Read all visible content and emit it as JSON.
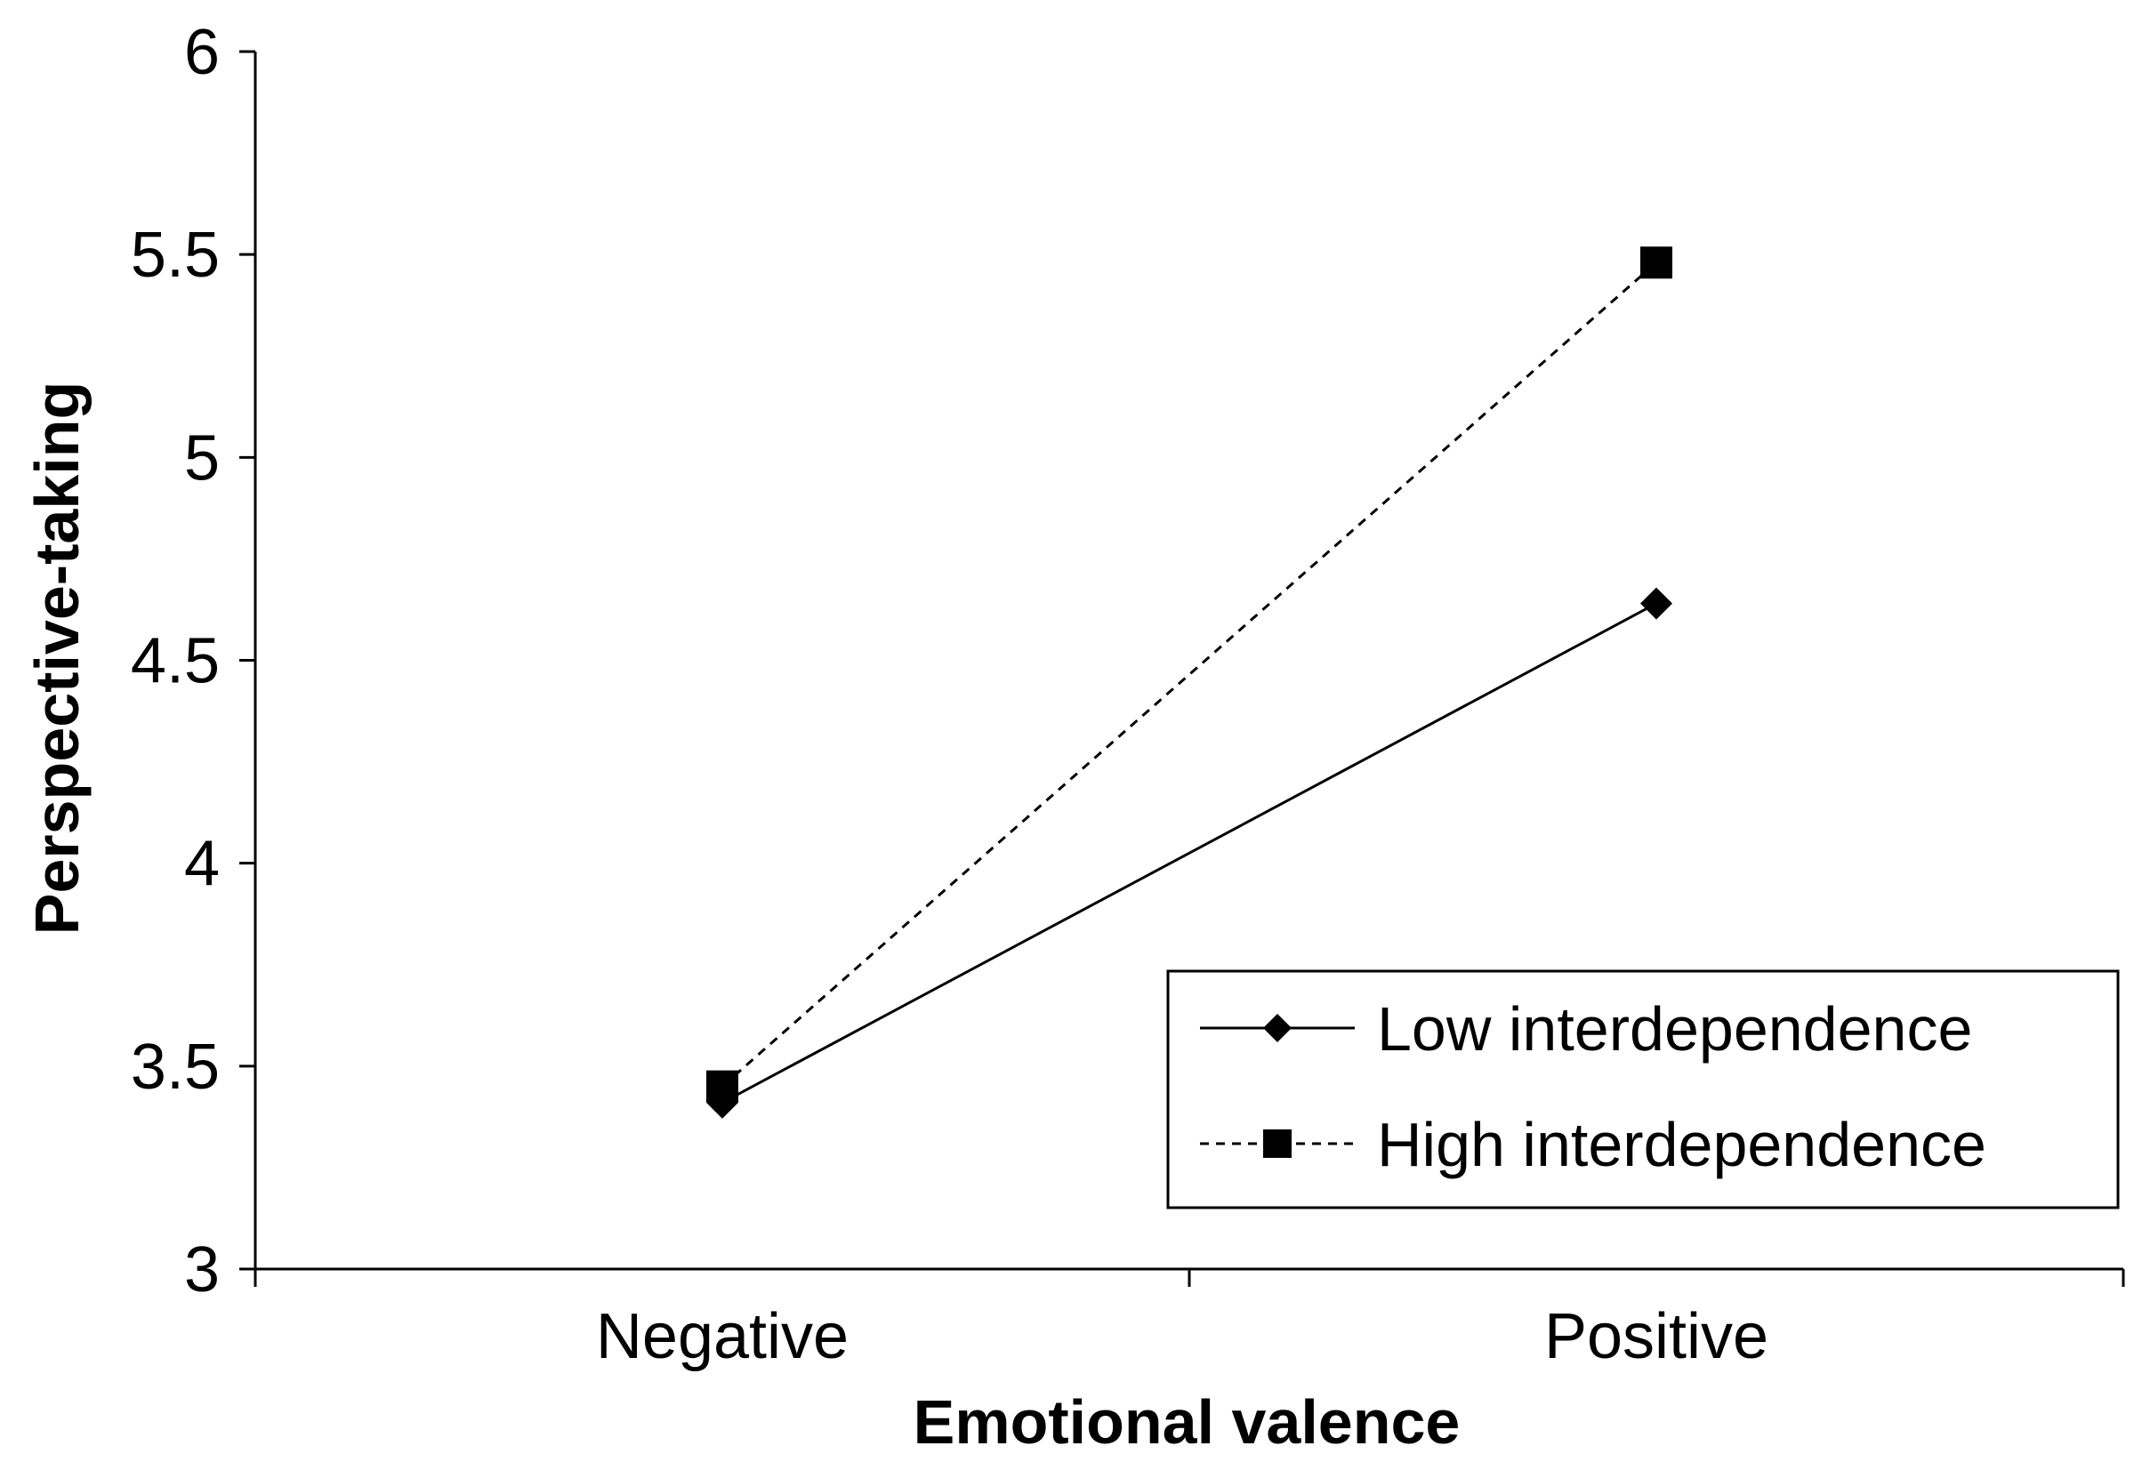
{
  "chart_data": {
    "type": "line",
    "title": "",
    "xlabel": "Emotional valence",
    "ylabel": "Perspective-taking",
    "categories": [
      "Negative",
      "Positive"
    ],
    "ylim": [
      3,
      6
    ],
    "yticks": [
      "3",
      "3.5",
      "4",
      "4.5",
      "5",
      "5.5",
      "6"
    ],
    "grid": false,
    "legend_position": "bottom-right",
    "series": [
      {
        "name": "Low interdependence",
        "values": [
          3.41,
          4.64
        ],
        "marker": "diamond",
        "line_style": "solid",
        "color": "#000000"
      },
      {
        "name": "High interdependence",
        "values": [
          3.45,
          5.48
        ],
        "marker": "square",
        "line_style": "dashed",
        "color": "#000000"
      }
    ]
  }
}
